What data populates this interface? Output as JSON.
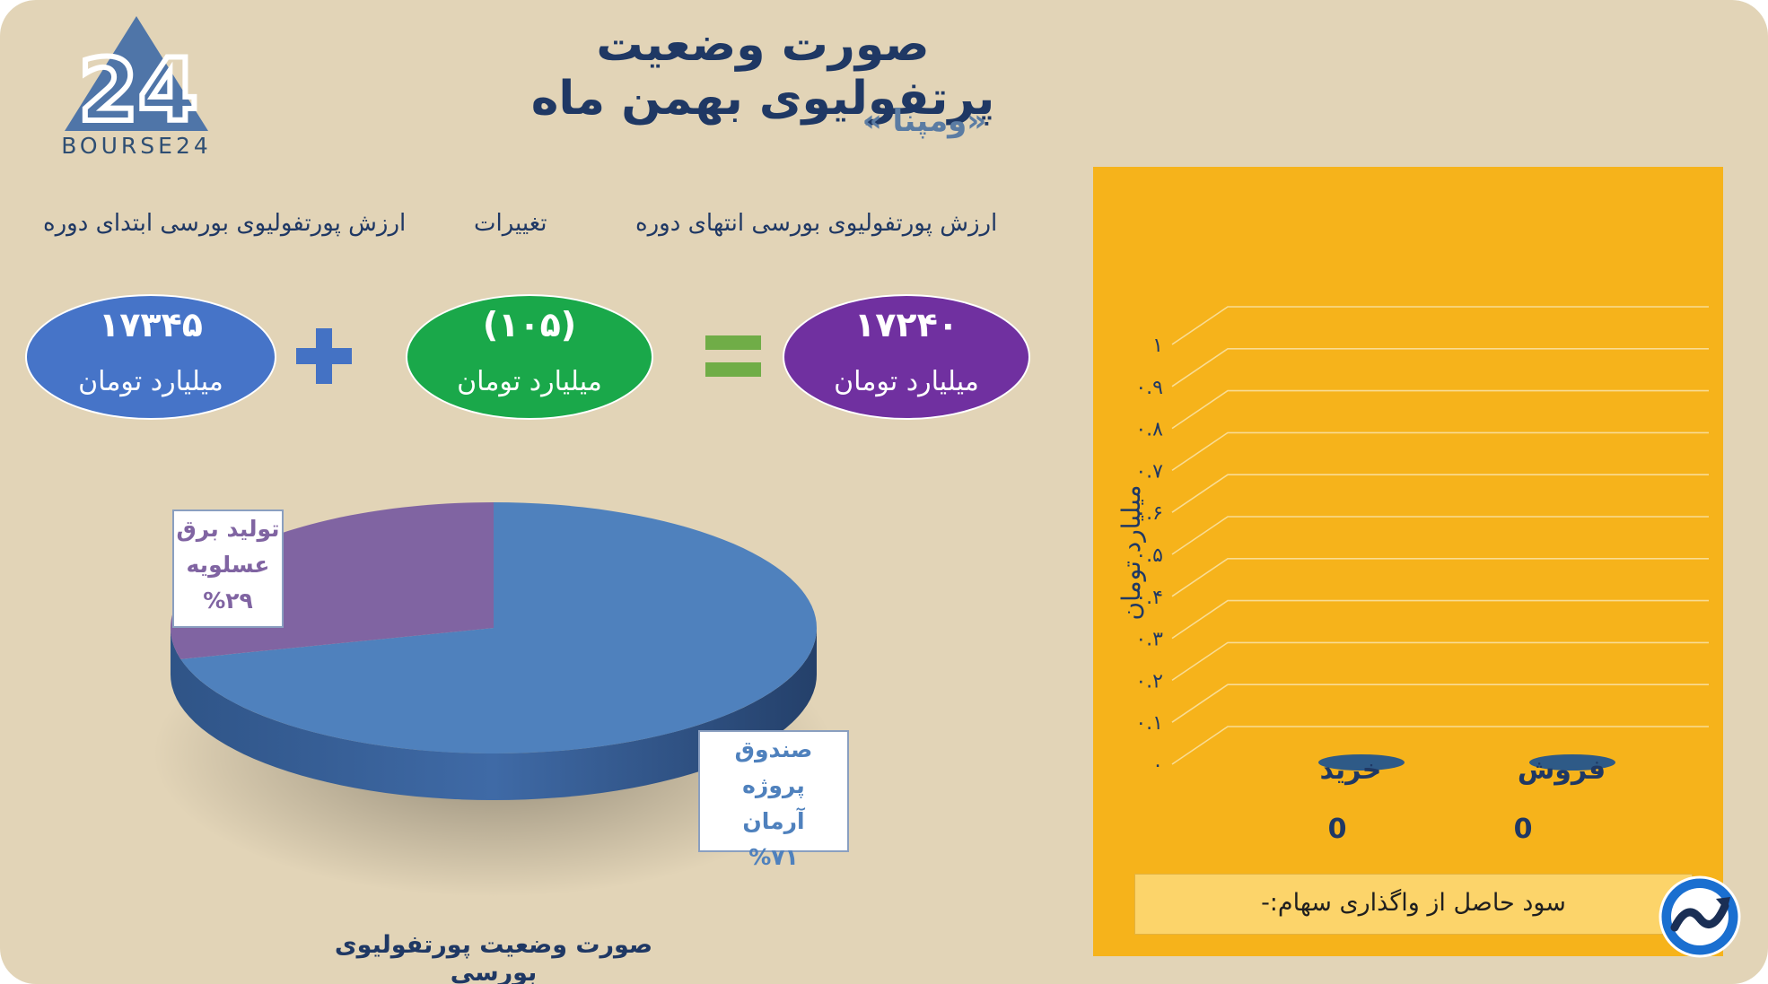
{
  "header": {
    "title": "صورت وضعیت پرتفولیوی بهمن ماه",
    "subtitle": "«ومپنا »"
  },
  "logo": {
    "text": "BOURSE24",
    "mark": "24"
  },
  "summary": {
    "start_label": "ارزش پورتفولیوی بورسی ابتدای دوره",
    "change_label": "تغییرات",
    "end_label": "ارزش پورتفولیوی بورسی انتهای دوره",
    "start_value": "۱۷۳۴۵",
    "change_value": "(۱۰۵)",
    "end_value": "۱۷۲۴۰",
    "unit": "میلیارد تومان",
    "plus_icon": "plus-icon",
    "equals_icon": "equals-icon",
    "colors": {
      "start": "#4674c8",
      "change": "#1aa84a",
      "end": "#7030a0",
      "plus": "#4472c4",
      "equals": "#70ad47"
    }
  },
  "chart_data": [
    {
      "type": "pie",
      "title": "",
      "caption": "صورت وضعیت پورتفولیوی بورسی",
      "slices": [
        {
          "label": "صندوق پروژه آرمان",
          "label_line1": "صندوق پروژه",
          "label_line2": "آرمان",
          "percent_text": "%۷۱",
          "value": 71,
          "color": "#4f81bd"
        },
        {
          "label": "تولید برق عسلویه",
          "label_line1": "تولید برق",
          "label_line2": "عسلویه",
          "percent_text": "%۲۹",
          "value": 29,
          "color": "#8064a2"
        }
      ]
    },
    {
      "type": "bar",
      "title": "",
      "categories": [
        "خرید",
        "فروش"
      ],
      "values": [
        0,
        0
      ],
      "value_labels": [
        "0",
        "0"
      ],
      "ylabel": "میلیارد تومان",
      "ylim": [
        0,
        1
      ],
      "yticks": [
        "۰",
        "۰.۱",
        "۰.۲",
        "۰.۳",
        "۰.۴",
        "۰.۵",
        "۰.۶",
        "۰.۷",
        "۰.۸",
        "۰.۹",
        "۱"
      ],
      "grid": true,
      "bar_color": "#2e5a87",
      "background": "#f6b31b"
    }
  ],
  "footer": {
    "profit_label": "سود حاصل از واگذاری سهام:-",
    "badge_icon": "trend-arrow-icon"
  }
}
